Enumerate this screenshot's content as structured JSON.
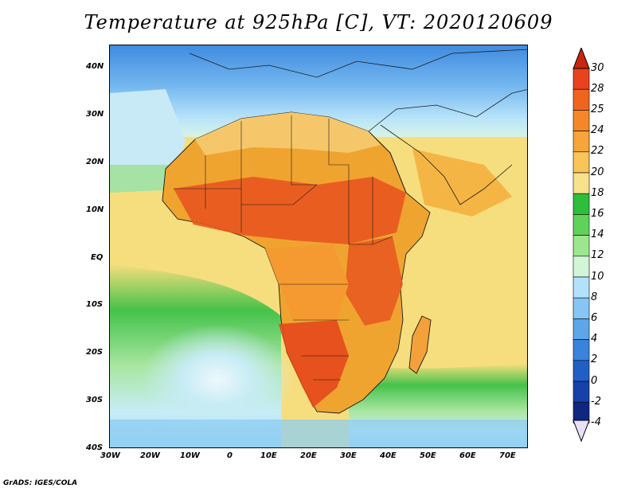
{
  "title": "Temperature at 925hPa [C], VT: 2020120609",
  "credit": "GrADS: IGES/COLA",
  "map": {
    "lon_range": [
      -30,
      75
    ],
    "lat_range": [
      -40,
      45
    ],
    "lat_labels": [
      "40N",
      "30N",
      "20N",
      "10N",
      "EQ",
      "10S",
      "20S",
      "30S",
      "40S"
    ],
    "lon_labels": [
      "30W",
      "20W",
      "10W",
      "0",
      "10E",
      "20E",
      "30E",
      "40E",
      "50E",
      "60E",
      "70E"
    ],
    "ocean_color": "#f6de7e",
    "land_color": "#f0a430"
  },
  "colorbar": {
    "labels": [
      "30",
      "28",
      "25",
      "24",
      "22",
      "20",
      "18",
      "16",
      "14",
      "12",
      "10",
      "8",
      "6",
      "4",
      "2",
      "0",
      "-2",
      "-4"
    ],
    "colors": [
      "#e8421e",
      "#f0641e",
      "#f5872a",
      "#f5a539",
      "#f7c55a",
      "#f8e18b",
      "#2fbd3c",
      "#5fd25a",
      "#9de58e",
      "#d2f5d8",
      "#b3e1fb",
      "#87c5f5",
      "#5ea6ea",
      "#3a83dc",
      "#215fc7",
      "#1740a8",
      "#0f2780"
    ],
    "top_color": "#c8260e",
    "bottom_color": "#e6e1fb"
  }
}
